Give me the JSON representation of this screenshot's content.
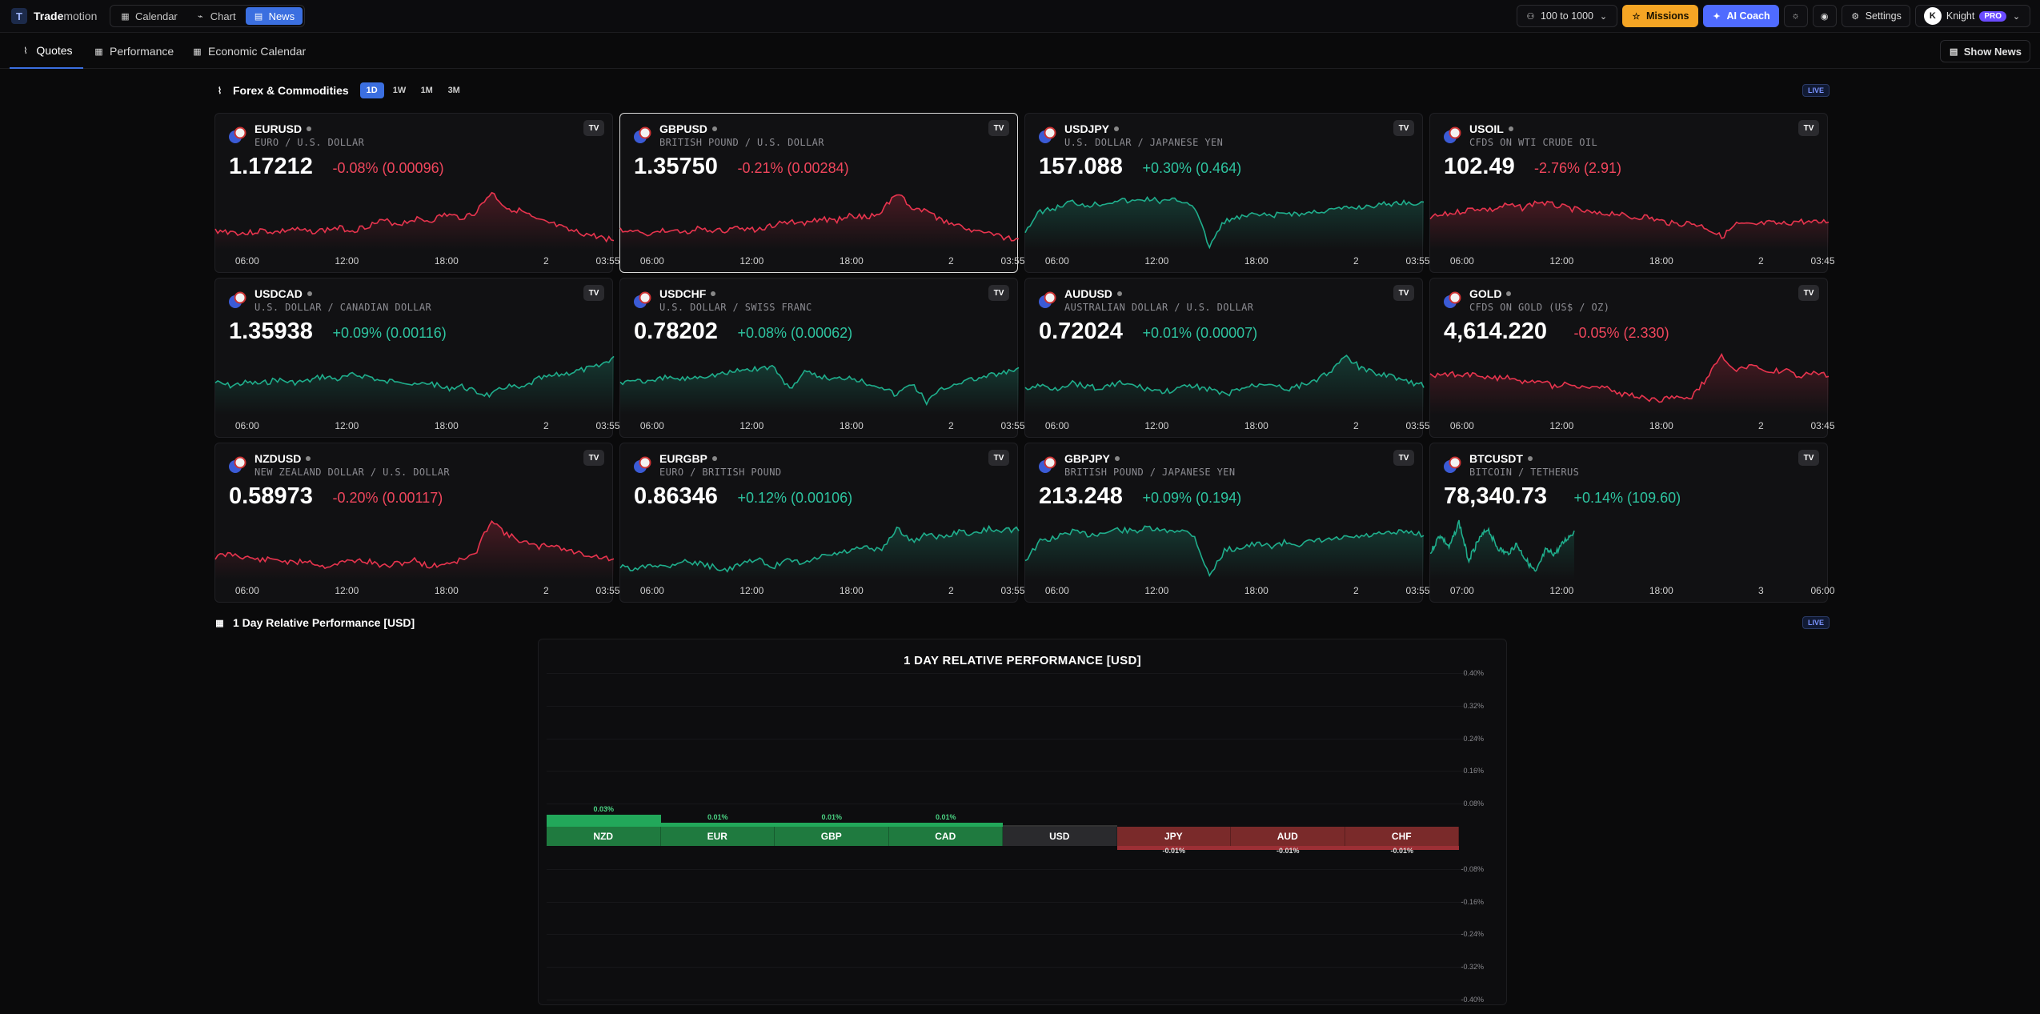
{
  "app": {
    "logo_letter": "T",
    "name_bold": "Trade",
    "name_thin": "motion"
  },
  "nav": [
    {
      "label": "Calendar",
      "icon": "calendar-icon"
    },
    {
      "label": "Chart",
      "icon": "chart-line-icon"
    },
    {
      "label": "News",
      "icon": "news-icon",
      "active": true
    }
  ],
  "toolbar": {
    "account_range": "100 to 1000",
    "missions": "Missions",
    "ai_coach": "AI Coach",
    "settings": "Settings",
    "user_initial": "K",
    "user_name": "Knight",
    "badge": "PRO"
  },
  "tabs": [
    {
      "label": "Quotes",
      "active": true
    },
    {
      "label": "Performance"
    },
    {
      "label": "Economic Calendar"
    }
  ],
  "show_news": "Show News",
  "quotes_section": {
    "title": "Forex & Commodities",
    "timeframes": [
      "1D",
      "1W",
      "1M",
      "3M"
    ],
    "active_timeframe": "1D",
    "live": "LIVE"
  },
  "cards": [
    {
      "symbol": "EURUSD",
      "desc": "EURO / U.S. DOLLAR",
      "price": "1.17212",
      "change": "-0.08% (0.00096)",
      "dir": "dn",
      "x": [
        "06:00",
        "12:00",
        "18:00",
        "2",
        "03:55"
      ],
      "shape": "a"
    },
    {
      "symbol": "GBPUSD",
      "desc": "BRITISH POUND / U.S. DOLLAR",
      "price": "1.35750",
      "change": "-0.21% (0.00284)",
      "dir": "dn",
      "x": [
        "06:00",
        "12:00",
        "18:00",
        "2",
        "03:55"
      ],
      "shape": "a",
      "selected": true
    },
    {
      "symbol": "USDJPY",
      "desc": "U.S. DOLLAR / JAPANESE YEN",
      "price": "157.088",
      "change": "+0.30% (0.464)",
      "dir": "up",
      "x": [
        "06:00",
        "12:00",
        "18:00",
        "2",
        "03:55"
      ],
      "shape": "b"
    },
    {
      "symbol": "USOIL",
      "desc": "CFDS ON WTI CRUDE OIL",
      "price": "102.49",
      "change": "-2.76% (2.91)",
      "dir": "dn",
      "x": [
        "06:00",
        "12:00",
        "18:00",
        "2",
        "03:45"
      ],
      "shape": "c"
    },
    {
      "symbol": "USDCAD",
      "desc": "U.S. DOLLAR / CANADIAN DOLLAR",
      "price": "1.35938",
      "change": "+0.09% (0.00116)",
      "dir": "up",
      "x": [
        "06:00",
        "12:00",
        "18:00",
        "2",
        "03:55"
      ],
      "shape": "d"
    },
    {
      "symbol": "USDCHF",
      "desc": "U.S. DOLLAR / SWISS FRANC",
      "price": "0.78202",
      "change": "+0.08% (0.00062)",
      "dir": "up",
      "x": [
        "06:00",
        "12:00",
        "18:00",
        "2",
        "03:55"
      ],
      "shape": "e"
    },
    {
      "symbol": "AUDUSD",
      "desc": "AUSTRALIAN DOLLAR / U.S. DOLLAR",
      "price": "0.72024",
      "change": "+0.01% (0.00007)",
      "dir": "up",
      "x": [
        "06:00",
        "12:00",
        "18:00",
        "2",
        "03:55"
      ],
      "shape": "f"
    },
    {
      "symbol": "GOLD",
      "desc": "CFDS ON GOLD (US$ / OZ)",
      "price": "4,614.220",
      "change": "-0.05% (2.330)",
      "dir": "dn",
      "x": [
        "06:00",
        "12:00",
        "18:00",
        "2",
        "03:45"
      ],
      "shape": "g"
    },
    {
      "symbol": "NZDUSD",
      "desc": "NEW ZEALAND DOLLAR / U.S. DOLLAR",
      "price": "0.58973",
      "change": "-0.20% (0.00117)",
      "dir": "dn",
      "x": [
        "06:00",
        "12:00",
        "18:00",
        "2",
        "03:55"
      ],
      "shape": "h"
    },
    {
      "symbol": "EURGBP",
      "desc": "EURO / BRITISH POUND",
      "price": "0.86346",
      "change": "+0.12% (0.00106)",
      "dir": "up",
      "x": [
        "06:00",
        "12:00",
        "18:00",
        "2",
        "03:55"
      ],
      "shape": "i"
    },
    {
      "symbol": "GBPJPY",
      "desc": "BRITISH POUND / JAPANESE YEN",
      "price": "213.248",
      "change": "+0.09% (0.194)",
      "dir": "up",
      "x": [
        "06:00",
        "12:00",
        "18:00",
        "2",
        "03:55"
      ],
      "shape": "b"
    },
    {
      "symbol": "BTCUSDT",
      "desc": "BITCOIN / TETHERUS",
      "price": "78,340.73",
      "change": "+0.14% (109.60)",
      "dir": "up",
      "x": [
        "07:00",
        "12:00",
        "18:00",
        "3",
        "06:00"
      ],
      "shape": "j"
    }
  ],
  "perf_section": {
    "title": "1 Day Relative Performance [USD]",
    "live": "LIVE"
  },
  "chart_data": {
    "type": "bar",
    "title": "1 DAY RELATIVE PERFORMANCE  [USD]",
    "categories": [
      "NZD",
      "EUR",
      "GBP",
      "CAD",
      "USD",
      "JPY",
      "AUD",
      "CHF"
    ],
    "values": [
      0.03,
      0.01,
      0.01,
      0.01,
      0,
      -0.01,
      -0.01,
      -0.01
    ],
    "value_labels": [
      "0.03%",
      "0.01%",
      "0.01%",
      "0.01%",
      "",
      "-0.01%",
      "-0.01%",
      "-0.01%"
    ],
    "yticks": [
      "0.40%",
      "0.32%",
      "0.24%",
      "0.16%",
      "0.08%",
      "-0.08%",
      "-0.16%",
      "-0.24%",
      "-0.32%",
      "-0.40%"
    ],
    "ylim": [
      -0.4,
      0.4
    ],
    "colors": {
      "positive": "#1f7a3f",
      "negative": "#7a2a2a",
      "neutral": "#2a2a2d"
    }
  }
}
